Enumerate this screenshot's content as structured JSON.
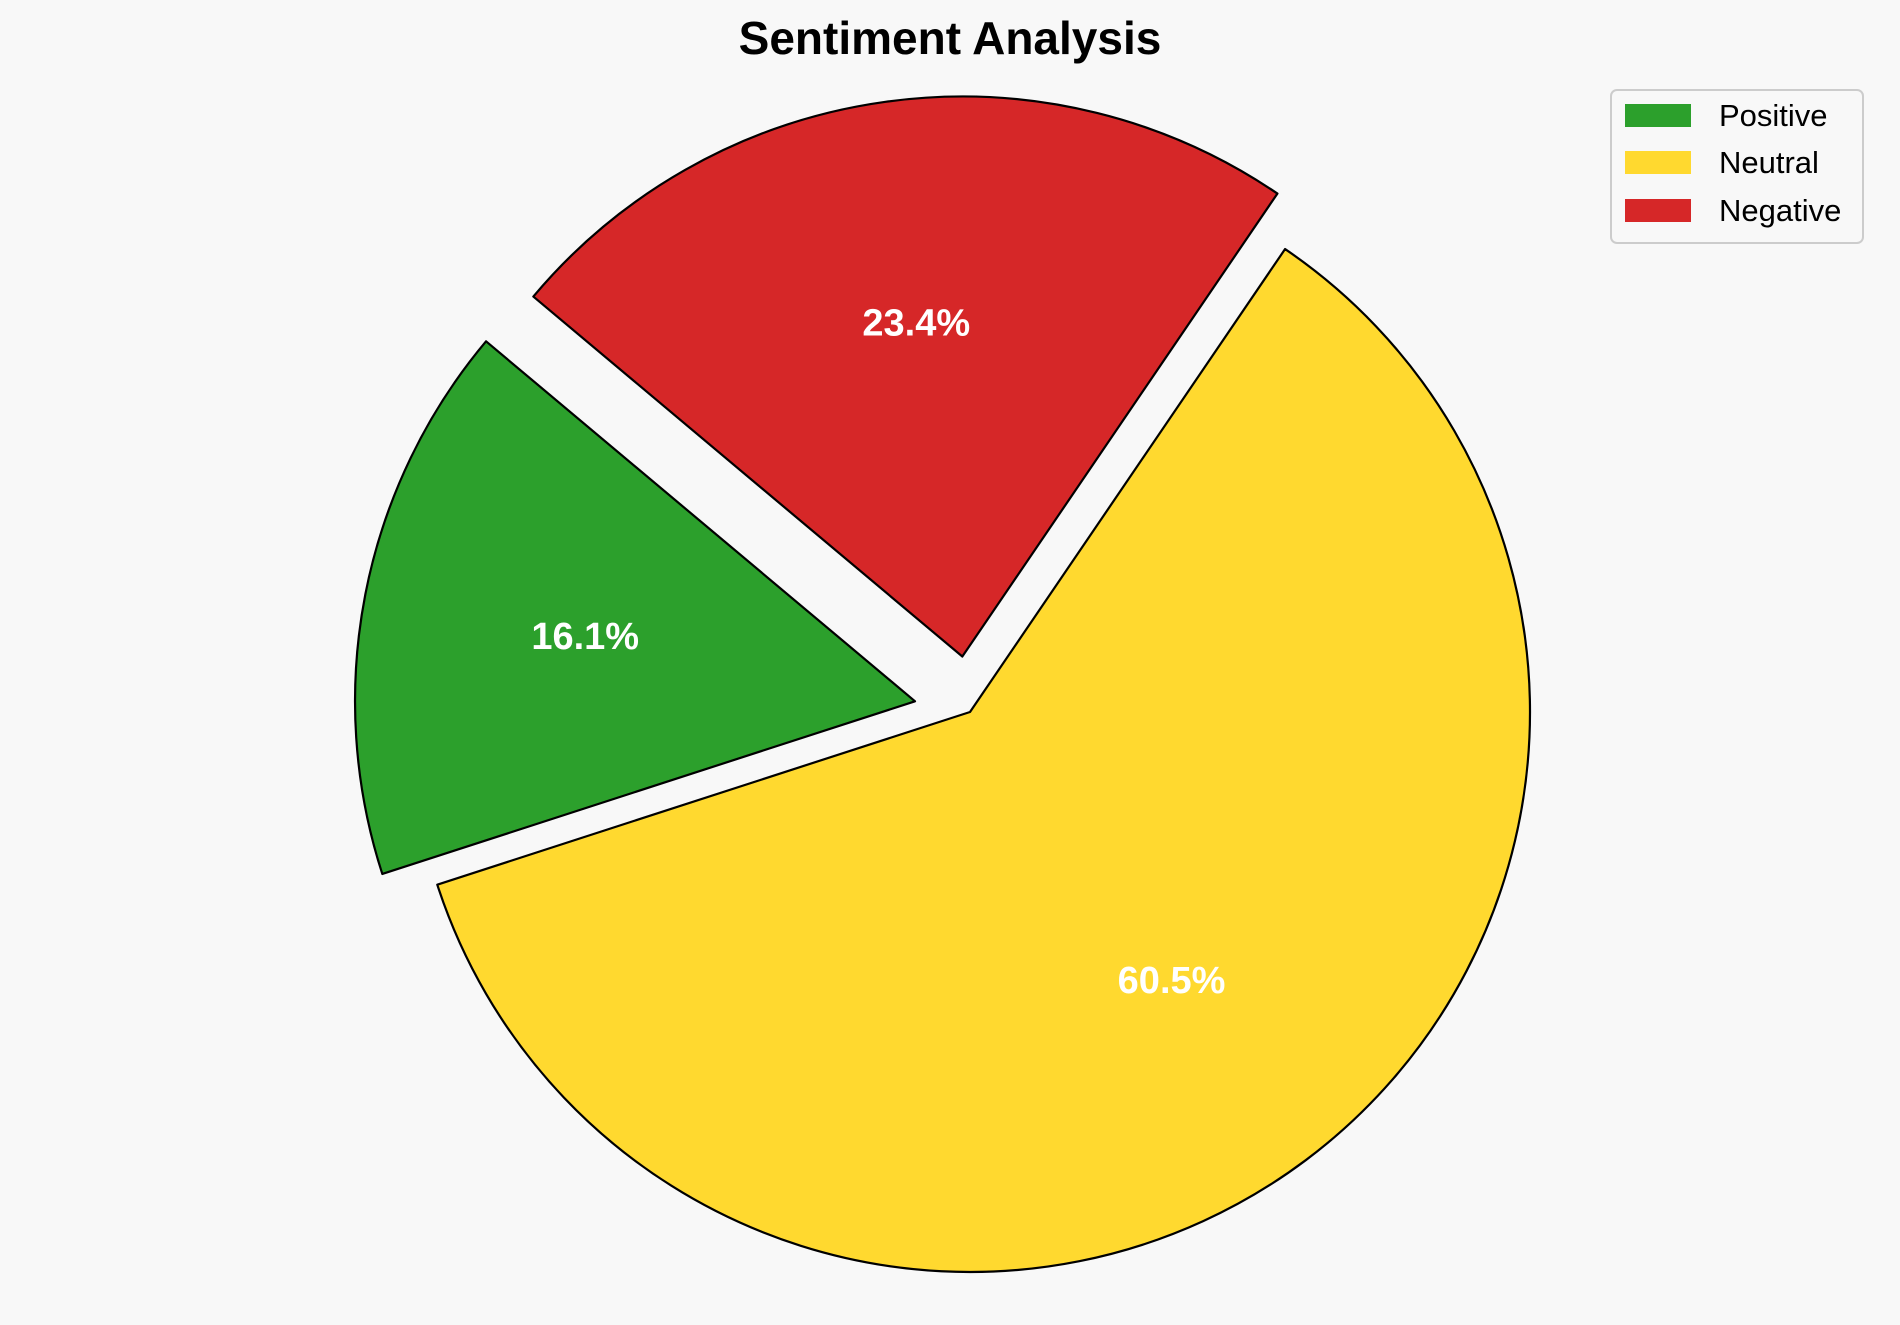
{
  "chart_data": {
    "type": "pie",
    "title": "Sentiment Analysis",
    "slices": [
      {
        "name": "Positive",
        "value": 16.1,
        "label": "16.1%",
        "color": "#2ca02c",
        "exploded": true
      },
      {
        "name": "Neutral",
        "value": 60.5,
        "label": "60.5%",
        "color": "#ffd92f",
        "exploded": false
      },
      {
        "name": "Negative",
        "value": 23.4,
        "label": "23.4%",
        "color": "#d62728",
        "exploded": true
      }
    ],
    "start_angle_deg": 140,
    "direction": "counterclockwise",
    "legend": {
      "position": "top-right",
      "entries": [
        "Positive",
        "Neutral",
        "Negative"
      ]
    }
  }
}
